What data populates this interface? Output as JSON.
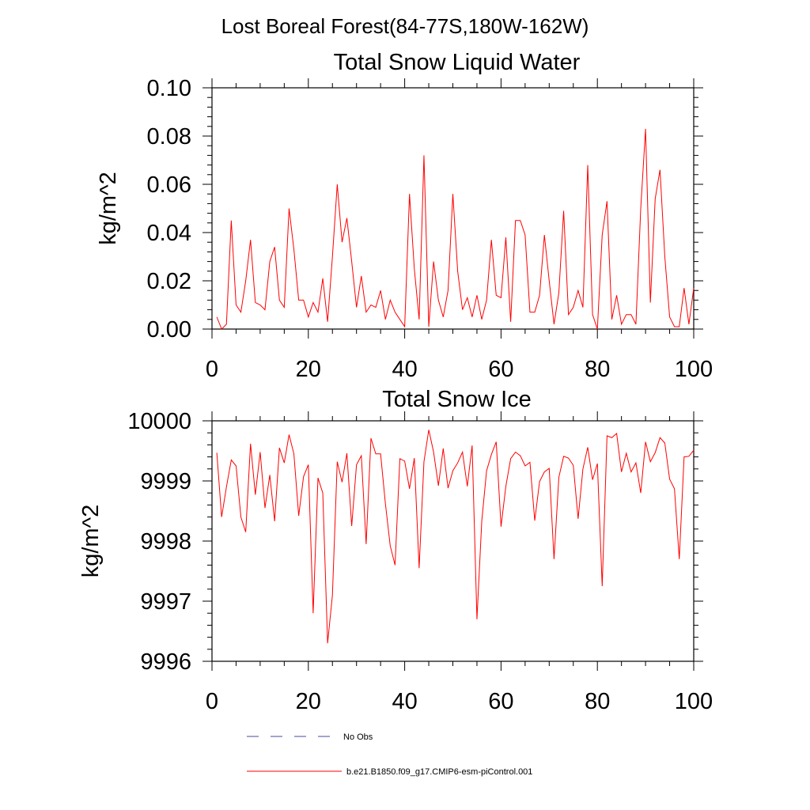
{
  "figure_title": "Lost Boreal Forest(84-77S,180W-162W)",
  "colors": {
    "series": "#ff0000",
    "no_obs": "#4a4a9a",
    "axis": "#000000"
  },
  "legend": [
    {
      "label": "No Obs",
      "style": "dashed",
      "color": "#4a4a9a"
    },
    {
      "label": "b.e21.B1850.f09_g17.CMIP6-esm-piControl.001",
      "style": "solid",
      "color": "#ff0000"
    }
  ],
  "chart_data": [
    {
      "type": "line",
      "title": "Total Snow Liquid Water",
      "xlabel": "",
      "ylabel": "kg/m^2",
      "xlim": [
        0,
        100
      ],
      "ylim": [
        0,
        0.1
      ],
      "xticks": [
        0,
        20,
        40,
        60,
        80,
        100
      ],
      "xtick_labels": [
        "0",
        "20",
        "40",
        "60",
        "80",
        "100"
      ],
      "yticks": [
        0,
        0.02,
        0.04,
        0.06,
        0.08,
        0.1
      ],
      "ytick_labels": [
        "0.00",
        "0.02",
        "0.04",
        "0.06",
        "0.08",
        "0.10"
      ],
      "series": [
        {
          "name": "b.e21.B1850.f09_g17.CMIP6-esm-piControl.001",
          "x": [
            1,
            2,
            3,
            4,
            5,
            6,
            7,
            8,
            9,
            10,
            11,
            12,
            13,
            14,
            15,
            16,
            17,
            18,
            19,
            20,
            21,
            22,
            23,
            24,
            25,
            26,
            27,
            28,
            29,
            30,
            31,
            32,
            33,
            34,
            35,
            36,
            37,
            38,
            39,
            40,
            41,
            42,
            43,
            44,
            45,
            46,
            47,
            48,
            49,
            50,
            51,
            52,
            53,
            54,
            55,
            56,
            57,
            58,
            59,
            60,
            61,
            62,
            63,
            64,
            65,
            66,
            67,
            68,
            69,
            70,
            71,
            72,
            73,
            74,
            75,
            76,
            77,
            78,
            79,
            80,
            81,
            82,
            83,
            84,
            85,
            86,
            87,
            88,
            89,
            90,
            91,
            92,
            93,
            94,
            95,
            96,
            97,
            98,
            99,
            100
          ],
          "values": [
            0.005,
            0.0,
            0.002,
            0.045,
            0.01,
            0.007,
            0.02,
            0.037,
            0.011,
            0.01,
            0.008,
            0.028,
            0.034,
            0.012,
            0.009,
            0.05,
            0.033,
            0.012,
            0.012,
            0.005,
            0.011,
            0.007,
            0.021,
            0.003,
            0.03,
            0.06,
            0.036,
            0.046,
            0.028,
            0.009,
            0.022,
            0.007,
            0.01,
            0.009,
            0.016,
            0.004,
            0.012,
            0.007,
            0.004,
            0.001,
            0.056,
            0.025,
            0.004,
            0.072,
            0.001,
            0.028,
            0.012,
            0.005,
            0.016,
            0.056,
            0.024,
            0.008,
            0.013,
            0.005,
            0.014,
            0.004,
            0.012,
            0.037,
            0.014,
            0.013,
            0.038,
            0.003,
            0.045,
            0.045,
            0.039,
            0.007,
            0.007,
            0.014,
            0.039,
            0.02,
            0.002,
            0.015,
            0.049,
            0.006,
            0.009,
            0.016,
            0.009,
            0.068,
            0.006,
            0.0,
            0.039,
            0.053,
            0.004,
            0.014,
            0.002,
            0.006,
            0.006,
            0.002,
            0.05,
            0.083,
            0.011,
            0.054,
            0.066,
            0.03,
            0.005,
            0.001,
            0.001,
            0.017,
            0.002,
            0.017
          ]
        }
      ]
    },
    {
      "type": "line",
      "title": "Total Snow Ice",
      "xlabel": "",
      "ylabel": "kg/m^2",
      "xlim": [
        0,
        100
      ],
      "ylim": [
        9996,
        10000
      ],
      "xticks": [
        0,
        20,
        40,
        60,
        80,
        100
      ],
      "xtick_labels": [
        "0",
        "20",
        "40",
        "60",
        "80",
        "100"
      ],
      "yticks": [
        9996,
        9997,
        9998,
        9999,
        10000
      ],
      "ytick_labels": [
        "9996",
        "9997",
        "9998",
        "9999",
        "10000"
      ],
      "series": [
        {
          "name": "b.e21.B1850.f09_g17.CMIP6-esm-piControl.001",
          "x": [
            1,
            2,
            3,
            4,
            5,
            6,
            7,
            8,
            9,
            10,
            11,
            12,
            13,
            14,
            15,
            16,
            17,
            18,
            19,
            20,
            21,
            22,
            23,
            24,
            25,
            26,
            27,
            28,
            29,
            30,
            31,
            32,
            33,
            34,
            35,
            36,
            37,
            38,
            39,
            40,
            41,
            42,
            43,
            44,
            45,
            46,
            47,
            48,
            49,
            50,
            51,
            52,
            53,
            54,
            55,
            56,
            57,
            58,
            59,
            60,
            61,
            62,
            63,
            64,
            65,
            66,
            67,
            68,
            69,
            70,
            71,
            72,
            73,
            74,
            75,
            76,
            77,
            78,
            79,
            80,
            81,
            82,
            83,
            84,
            85,
            86,
            87,
            88,
            89,
            90,
            91,
            92,
            93,
            94,
            95,
            96,
            97,
            98,
            99,
            100
          ],
          "values": [
            9999.47,
            9998.4,
            9998.9,
            9999.35,
            9999.25,
            9998.4,
            9998.15,
            9999.62,
            9998.77,
            9999.48,
            9998.55,
            9999.1,
            9998.33,
            9999.55,
            9999.3,
            9999.77,
            9999.45,
            9998.42,
            9999.07,
            9999.27,
            9996.8,
            9999.05,
            9998.8,
            9996.3,
            9997.1,
            9999.32,
            9998.98,
            9999.46,
            9998.25,
            9999.27,
            9999.42,
            9997.95,
            9999.71,
            9999.45,
            9999.45,
            9998.62,
            9997.92,
            9997.6,
            9999.37,
            9999.33,
            9998.87,
            9999.38,
            9997.55,
            9999.32,
            9999.85,
            9999.48,
            9998.92,
            9999.54,
            9998.88,
            9999.17,
            9999.3,
            9999.48,
            9998.91,
            9999.59,
            9996.7,
            9998.33,
            9999.17,
            9999.44,
            9999.65,
            9998.24,
            9998.91,
            9999.37,
            9999.48,
            9999.42,
            9999.25,
            9999.31,
            9998.34,
            9998.99,
            9999.15,
            9999.21,
            9997.7,
            9999.06,
            9999.41,
            9999.38,
            9999.26,
            9998.37,
            9999.2,
            9999.56,
            9999.02,
            9999.29,
            9997.25,
            9999.75,
            9999.72,
            9999.79,
            9999.15,
            9999.46,
            9999.15,
            9999.3,
            9998.8,
            9999.65,
            9999.32,
            9999.47,
            9999.72,
            9999.63,
            9999.03,
            9998.87,
            9997.7,
            9999.4,
            9999.41,
            9999.51
          ]
        }
      ]
    }
  ]
}
